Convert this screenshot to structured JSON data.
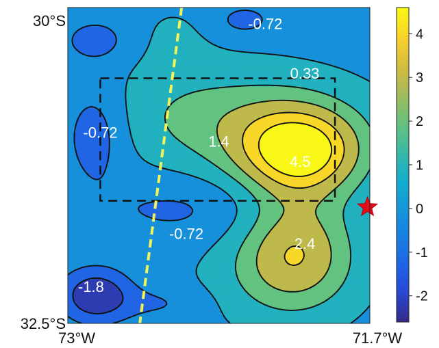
{
  "chart_data": {
    "type": "contour",
    "title": "",
    "xlabel": "",
    "ylabel": "",
    "xlim": [
      -73.0,
      -71.7
    ],
    "ylim": [
      -32.5,
      -30.0
    ],
    "x_tick_labels": [
      {
        "value": -73.0,
        "text": "73°W"
      },
      {
        "value": -71.7,
        "text": "71.7°W"
      }
    ],
    "y_tick_labels": [
      {
        "value": -30.0,
        "text": "30°S"
      },
      {
        "value": -32.5,
        "text": "32.5°S"
      }
    ],
    "colorbar": {
      "colormap": "parula",
      "range": [
        -2.6,
        4.6
      ],
      "ticks": [
        4,
        3,
        2,
        1,
        0,
        -1,
        -2
      ]
    },
    "contour_levels": [
      -1.8,
      -0.72,
      0.33,
      1.4,
      2.4,
      3.5,
      4.5
    ],
    "contour_labels": [
      {
        "text": "-0.72",
        "lon": -72.15,
        "lat": -30.14
      },
      {
        "text": "0.33",
        "lon": -71.98,
        "lat": -30.53
      },
      {
        "text": "-0.72",
        "lon": -72.86,
        "lat": -31.0
      },
      {
        "text": "1.4",
        "lon": -72.35,
        "lat": -31.07
      },
      {
        "text": "4.5",
        "lon": -72.0,
        "lat": -31.23
      },
      {
        "text": "-0.72",
        "lon": -72.49,
        "lat": -31.8
      },
      {
        "text": "2.4",
        "lon": -71.98,
        "lat": -31.88
      },
      {
        "text": "-1.8",
        "lon": -72.9,
        "lat": -32.22
      }
    ],
    "box": {
      "lon_min": -72.86,
      "lon_max": -71.85,
      "lat_min": -31.53,
      "lat_max": -30.56
    },
    "trench_line": [
      {
        "lon": -72.51,
        "lat": -30.0
      },
      {
        "lon": -72.69,
        "lat": -32.5
      }
    ],
    "epicenter": {
      "lon": -71.71,
      "lat": -31.58
    },
    "fields": [
      {
        "lon": -72.0,
        "lat": -31.14,
        "sx": 0.18,
        "sy": 0.24,
        "amp": 4.6
      },
      {
        "lon": -72.15,
        "lat": -31.05,
        "sx": 0.34,
        "sy": 0.3,
        "amp": 1.1
      },
      {
        "lon": -72.38,
        "lat": -30.82,
        "sx": 0.34,
        "sy": 0.27,
        "amp": 1.2
      },
      {
        "lon": -72.55,
        "lat": -30.24,
        "sx": 0.12,
        "sy": 0.22,
        "amp": 0.4
      },
      {
        "lon": -72.02,
        "lat": -31.9,
        "sx": 0.17,
        "sy": 0.32,
        "amp": 3.1
      },
      {
        "lon": -72.1,
        "lat": -32.14,
        "sx": 0.24,
        "sy": 0.26,
        "amp": 0.8
      },
      {
        "lon": -72.88,
        "lat": -32.28,
        "sx": 0.1,
        "sy": 0.14,
        "amp": -2.9
      },
      {
        "lon": -72.88,
        "lat": -30.98,
        "sx": 0.1,
        "sy": 0.28,
        "amp": -1.5
      },
      {
        "lon": -72.88,
        "lat": -30.26,
        "sx": 0.1,
        "sy": 0.12,
        "amp": -1.2
      },
      {
        "lon": -72.24,
        "lat": -30.1,
        "sx": 0.08,
        "sy": 0.08,
        "amp": -1.2
      },
      {
        "lon": -72.46,
        "lat": -31.58,
        "sx": 0.33,
        "sy": 0.2,
        "amp": -1.0
      },
      {
        "lon": -72.6,
        "lat": -32.34,
        "sx": 0.14,
        "sy": 0.1,
        "amp": -0.8
      }
    ]
  }
}
